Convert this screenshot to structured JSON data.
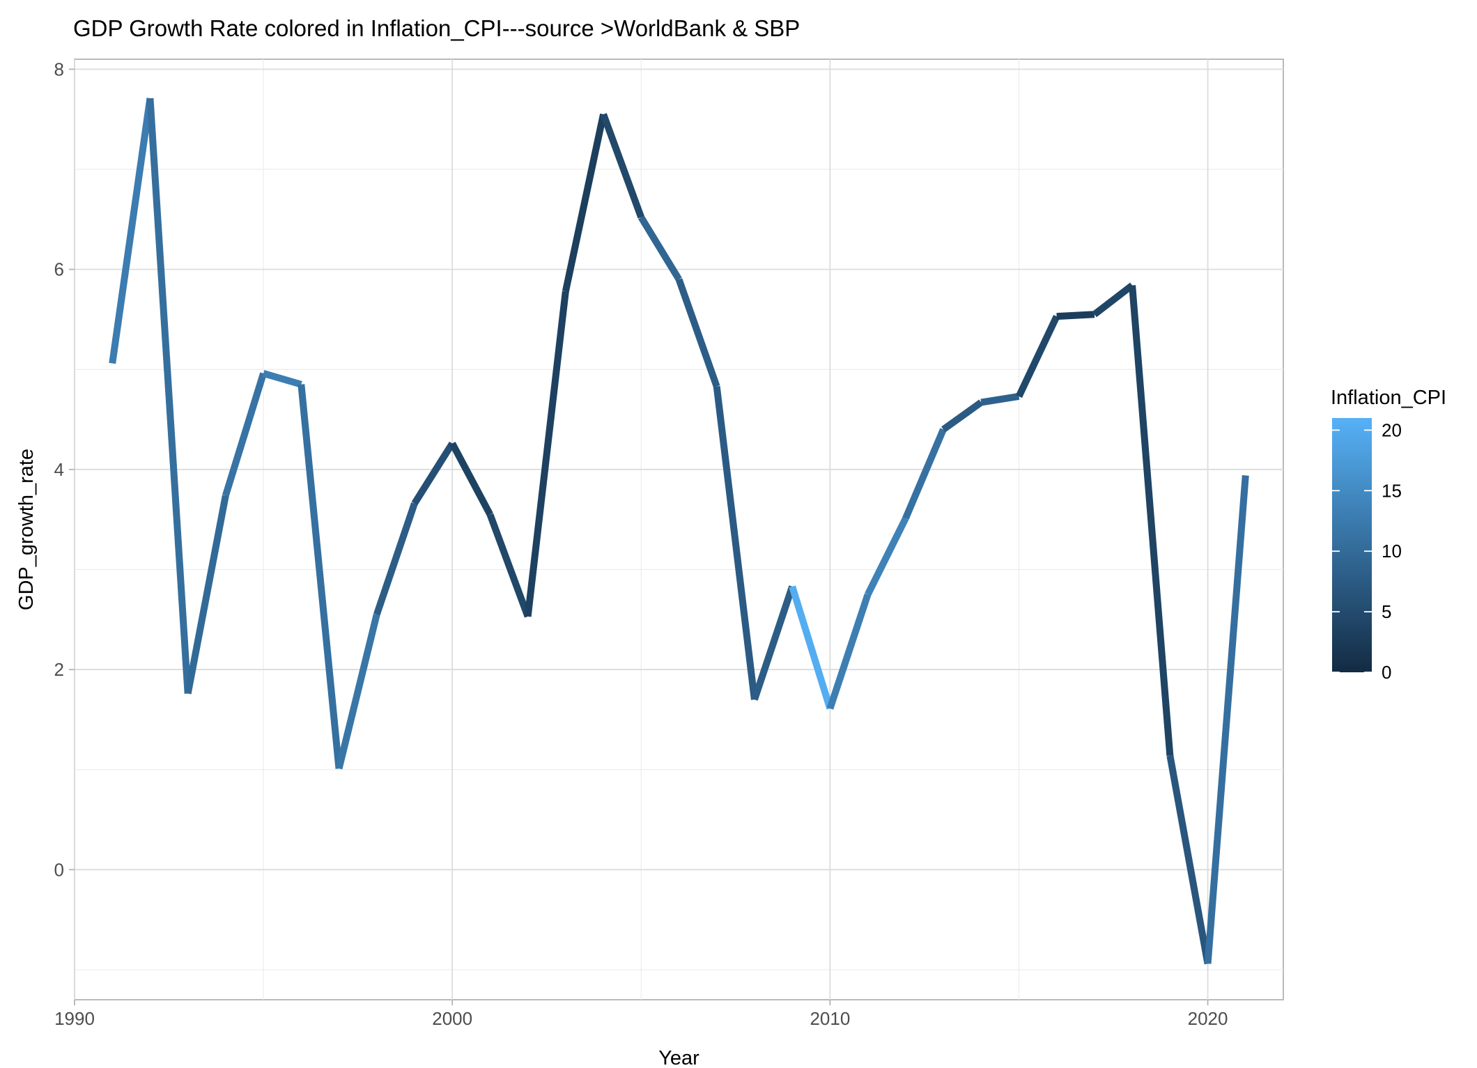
{
  "chart_data": {
    "type": "line",
    "title": "GDP Growth Rate colored in Inflation_CPI---source >WorldBank & SBP",
    "xlabel": "Year",
    "ylabel": "GDP_growth_rate",
    "xlim": [
      1990,
      2022
    ],
    "ylim": [
      -1.3,
      8.1
    ],
    "x_ticks": [
      1990,
      2000,
      2010,
      2020
    ],
    "y_ticks": [
      0,
      2,
      4,
      6,
      8
    ],
    "grid": true,
    "legend": {
      "title": "Inflation_CPI",
      "placement": "right",
      "type": "colorbar",
      "range": [
        0,
        21
      ],
      "ticks": [
        0,
        5,
        10,
        15,
        20
      ],
      "low_color": "#132B43",
      "high_color": "#56B1F7"
    },
    "points": [
      {
        "year": 1991,
        "gdp": 5.06,
        "cpi": 12.7
      },
      {
        "year": 1992,
        "gdp": 7.71,
        "cpi": 10.6
      },
      {
        "year": 1993,
        "gdp": 1.76,
        "cpi": 9.8
      },
      {
        "year": 1994,
        "gdp": 3.74,
        "cpi": 11.3
      },
      {
        "year": 1995,
        "gdp": 4.96,
        "cpi": 13.0
      },
      {
        "year": 1996,
        "gdp": 4.85,
        "cpi": 10.8
      },
      {
        "year": 1997,
        "gdp": 1.01,
        "cpi": 11.8
      },
      {
        "year": 1998,
        "gdp": 2.55,
        "cpi": 7.8
      },
      {
        "year": 1999,
        "gdp": 3.66,
        "cpi": 5.7
      },
      {
        "year": 2000,
        "gdp": 4.26,
        "cpi": 3.6
      },
      {
        "year": 2001,
        "gdp": 3.55,
        "cpi": 4.4
      },
      {
        "year": 2002,
        "gdp": 2.53,
        "cpi": 3.5
      },
      {
        "year": 2003,
        "gdp": 5.78,
        "cpi": 3.1
      },
      {
        "year": 2004,
        "gdp": 7.55,
        "cpi": 4.6
      },
      {
        "year": 2005,
        "gdp": 6.52,
        "cpi": 9.3
      },
      {
        "year": 2006,
        "gdp": 5.9,
        "cpi": 7.9
      },
      {
        "year": 2007,
        "gdp": 4.83,
        "cpi": 7.6
      },
      {
        "year": 2008,
        "gdp": 1.7,
        "cpi": 7.8
      },
      {
        "year": 2009,
        "gdp": 2.83,
        "cpi": 20.3
      },
      {
        "year": 2010,
        "gdp": 1.61,
        "cpi": 13.1
      },
      {
        "year": 2011,
        "gdp": 2.75,
        "cpi": 13.7
      },
      {
        "year": 2012,
        "gdp": 3.51,
        "cpi": 11.0
      },
      {
        "year": 2013,
        "gdp": 4.4,
        "cpi": 7.4
      },
      {
        "year": 2014,
        "gdp": 4.67,
        "cpi": 8.6
      },
      {
        "year": 2015,
        "gdp": 4.73,
        "cpi": 4.5
      },
      {
        "year": 2016,
        "gdp": 5.53,
        "cpi": 2.9
      },
      {
        "year": 2017,
        "gdp": 5.55,
        "cpi": 4.2
      },
      {
        "year": 2018,
        "gdp": 5.84,
        "cpi": 3.9
      },
      {
        "year": 2019,
        "gdp": 1.14,
        "cpi": 6.8
      },
      {
        "year": 2020,
        "gdp": -0.94,
        "cpi": 10.7
      },
      {
        "year": 2021,
        "gdp": 3.94,
        "cpi": 8.9
      }
    ]
  }
}
